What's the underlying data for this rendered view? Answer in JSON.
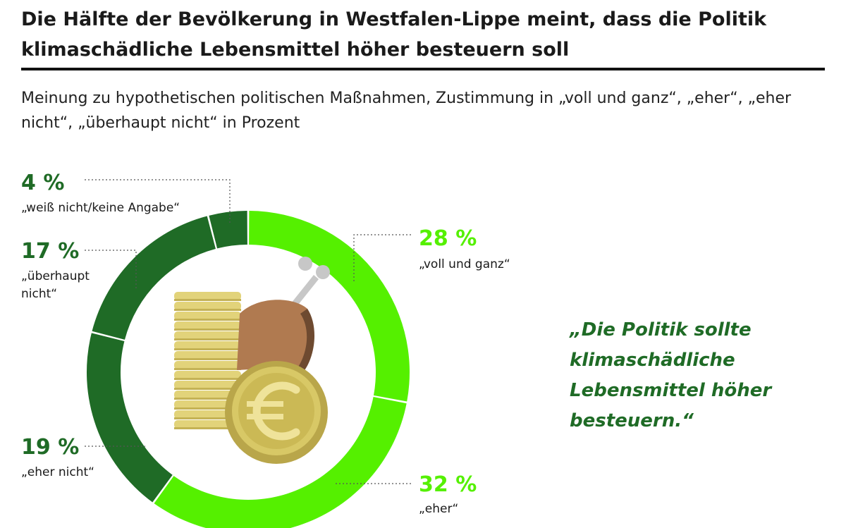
{
  "title": "Die Hälfte der Bevölkerung in Westfalen-Lippe meint, dass die Politik klimaschädliche Lebensmittel höher besteuern soll",
  "subtitle": "Meinung zu hypothetischen politischen Maßnahmen, Zustimmung in „voll und ganz“, „eher“, „eher nicht“, „überhaupt nicht“ in Prozent",
  "quote": "„Die Politik sollte klimaschädliche Lebensmittel höher besteuern.“",
  "colors": {
    "light_green": "#55f000",
    "dark_green": "#1f6b26"
  },
  "icons": [
    "coin-stack-icon",
    "euro-coin-icon",
    "chicken-leg-icon"
  ],
  "chart_data": {
    "type": "pie",
    "variant": "donut",
    "unit": "%",
    "slices": [
      {
        "name": "„voll und ganz“",
        "value": 28,
        "label": "28 %",
        "color": "#55f000"
      },
      {
        "name": "„eher“",
        "value": 32,
        "label": "32 %",
        "color": "#55f000"
      },
      {
        "name": "„eher nicht“",
        "value": 19,
        "label": "19 %",
        "color": "#1f6b26"
      },
      {
        "name": "„überhaupt nicht“",
        "value": 17,
        "label": "17 %",
        "color": "#1f6b26"
      },
      {
        "name": "„weiß nicht/keine Angabe“",
        "value": 4,
        "label": "4 %",
        "color": "#1f6b26"
      }
    ]
  }
}
